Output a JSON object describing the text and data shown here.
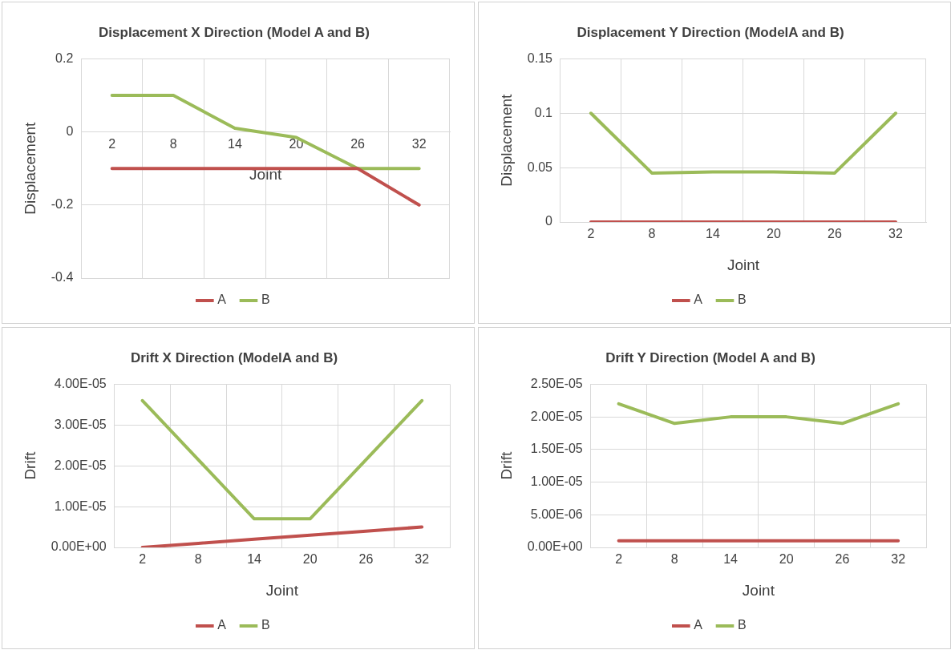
{
  "chart_data": [
    {
      "type": "line",
      "title": "Displacement X Direction (Model A and B)",
      "xlabel": "Joint",
      "ylabel": "Displacement",
      "categories": [
        "2",
        "8",
        "14",
        "20",
        "26",
        "32"
      ],
      "series": [
        {
          "name": "A",
          "color": "#c0504d",
          "values": [
            -0.1,
            -0.1,
            -0.1,
            -0.1,
            -0.1,
            -0.2
          ]
        },
        {
          "name": "B",
          "color": "#9bbb59",
          "values": [
            0.1,
            0.1,
            0.01,
            -0.015,
            -0.1,
            -0.1
          ]
        }
      ],
      "ylim": [
        -0.4,
        0.2
      ],
      "yticks": [
        -0.4,
        -0.2,
        0,
        0.2
      ],
      "grid": true,
      "legend": "bottom",
      "marker": "none",
      "line_style": "solid"
    },
    {
      "type": "line",
      "title": "Displacement Y Direction (ModelA and B)",
      "xlabel": "Joint",
      "ylabel": "Displacement",
      "categories": [
        "2",
        "8",
        "14",
        "20",
        "26",
        "32"
      ],
      "series": [
        {
          "name": "A",
          "color": "#c0504d",
          "values": [
            0,
            0,
            0,
            0,
            0,
            0
          ]
        },
        {
          "name": "B",
          "color": "#9bbb59",
          "values": [
            0.1,
            0.045,
            0.046,
            0.046,
            0.045,
            0.1
          ]
        }
      ],
      "ylim": [
        0,
        0.15
      ],
      "yticks": [
        0,
        0.05,
        0.1,
        0.15
      ],
      "grid": true,
      "legend": "bottom",
      "marker": "none",
      "line_style": "solid"
    },
    {
      "type": "line",
      "title": "Drift X Direction (ModelA and B)",
      "xlabel": "Joint",
      "ylabel": "Drift",
      "categories": [
        "2",
        "8",
        "14",
        "20",
        "26",
        "32"
      ],
      "series": [
        {
          "name": "A",
          "color": "#c0504d",
          "values": [
            0,
            1e-06,
            2e-06,
            3e-06,
            4e-06,
            5e-06
          ]
        },
        {
          "name": "B",
          "color": "#9bbb59",
          "values": [
            3.6e-05,
            2.15e-05,
            7e-06,
            7e-06,
            2.15e-05,
            3.6e-05
          ]
        }
      ],
      "ylim": [
        0,
        4e-05
      ],
      "yticks": [
        {
          "value": 0,
          "label": "0.00E+00"
        },
        {
          "value": 1e-05,
          "label": "1.00E-05"
        },
        {
          "value": 2e-05,
          "label": "2.00E-05"
        },
        {
          "value": 3e-05,
          "label": "3.00E-05"
        },
        {
          "value": 4e-05,
          "label": "4.00E-05"
        }
      ],
      "grid": true,
      "legend": "bottom",
      "marker": "none",
      "line_style": "solid"
    },
    {
      "type": "line",
      "title": "Drift Y Direction (Model A and B)",
      "xlabel": "Joint",
      "ylabel": "Drift",
      "categories": [
        "2",
        "8",
        "14",
        "20",
        "26",
        "32"
      ],
      "series": [
        {
          "name": "A",
          "color": "#c0504d",
          "values": [
            1e-06,
            1e-06,
            1e-06,
            1e-06,
            1e-06,
            1e-06
          ]
        },
        {
          "name": "B",
          "color": "#9bbb59",
          "values": [
            2.2e-05,
            1.9e-05,
            2e-05,
            2e-05,
            1.9e-05,
            2.2e-05
          ]
        }
      ],
      "ylim": [
        0,
        2.5e-05
      ],
      "yticks": [
        {
          "value": 0,
          "label": "0.00E+00"
        },
        {
          "value": 5e-06,
          "label": "5.00E-06"
        },
        {
          "value": 1e-05,
          "label": "1.00E-05"
        },
        {
          "value": 1.5e-05,
          "label": "1.50E-05"
        },
        {
          "value": 2e-05,
          "label": "2.00E-05"
        },
        {
          "value": 2.5e-05,
          "label": "2.50E-05"
        }
      ],
      "grid": true,
      "legend": "bottom",
      "marker": "none",
      "line_style": "solid"
    }
  ]
}
